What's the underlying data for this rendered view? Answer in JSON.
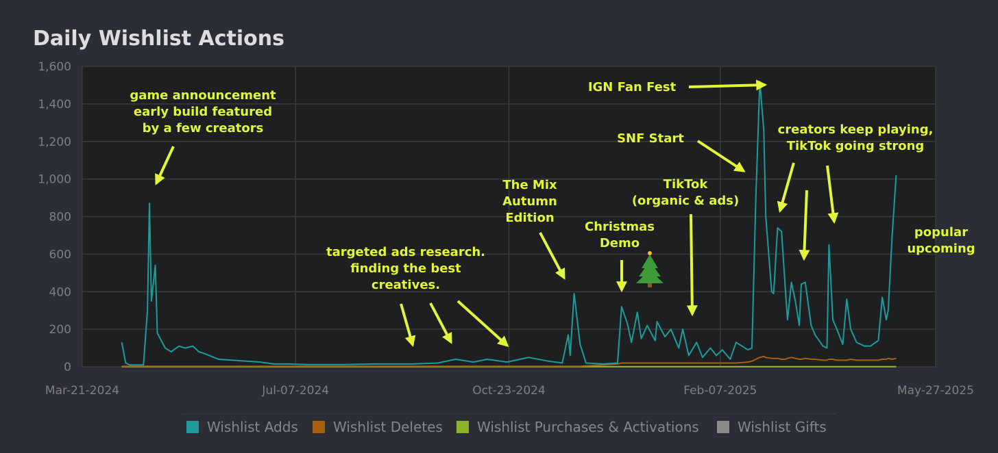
{
  "chart_data": {
    "type": "line",
    "title": "Daily Wishlist Actions",
    "x": [
      "2024-04-10",
      "2024-04-12",
      "2024-04-14",
      "2024-04-21",
      "2024-04-23",
      "2024-04-24",
      "2024-04-25",
      "2024-04-27",
      "2024-04-28",
      "2024-05-02",
      "2024-05-05",
      "2024-05-09",
      "2024-05-12",
      "2024-05-16",
      "2024-05-19",
      "2024-05-22",
      "2024-05-29",
      "2024-06-05",
      "2024-06-12",
      "2024-06-19",
      "2024-06-26",
      "2024-07-03",
      "2024-07-13",
      "2024-07-31",
      "2024-08-17",
      "2024-09-04",
      "2024-09-17",
      "2024-09-26",
      "2024-10-05",
      "2024-10-12",
      "2024-10-22",
      "2024-11-02",
      "2024-11-12",
      "2024-11-19",
      "2024-11-22",
      "2024-11-23",
      "2024-11-25",
      "2024-11-28",
      "2024-12-01",
      "2024-12-10",
      "2024-12-17",
      "2024-12-19",
      "2024-12-22",
      "2024-12-24",
      "2024-12-27",
      "2024-12-29",
      "2025-01-01",
      "2025-01-05",
      "2025-01-06",
      "2025-01-10",
      "2025-01-13",
      "2025-01-17",
      "2025-01-19",
      "2025-01-22",
      "2025-01-26",
      "2025-01-29",
      "2025-02-02",
      "2025-02-05",
      "2025-02-08",
      "2025-02-12",
      "2025-02-15",
      "2025-02-21",
      "2025-02-23",
      "2025-02-25",
      "2025-02-27",
      "2025-03-01",
      "2025-03-02",
      "2025-03-05",
      "2025-03-06",
      "2025-03-08",
      "2025-03-10",
      "2025-03-12",
      "2025-03-13",
      "2025-03-15",
      "2025-03-17",
      "2025-03-19",
      "2025-03-20",
      "2025-03-22",
      "2025-03-25",
      "2025-03-27",
      "2025-03-31",
      "2025-04-02",
      "2025-04-03",
      "2025-04-05",
      "2025-04-07",
      "2025-04-10",
      "2025-04-12",
      "2025-04-14",
      "2025-04-17",
      "2025-04-21",
      "2025-04-24",
      "2025-04-28",
      "2025-04-30",
      "2025-05-02",
      "2025-05-03",
      "2025-05-05",
      "2025-05-07"
    ],
    "series": [
      {
        "name": "Wishlist Adds",
        "color": "#1f9b9b",
        "values": [
          130,
          20,
          10,
          10,
          300,
          870,
          350,
          540,
          180,
          100,
          80,
          110,
          100,
          110,
          80,
          70,
          40,
          35,
          30,
          25,
          15,
          15,
          12,
          12,
          15,
          15,
          20,
          40,
          25,
          40,
          25,
          50,
          30,
          20,
          170,
          60,
          390,
          120,
          20,
          15,
          20,
          320,
          230,
          130,
          290,
          150,
          220,
          140,
          240,
          160,
          200,
          100,
          200,
          60,
          130,
          50,
          100,
          60,
          90,
          40,
          130,
          90,
          100,
          900,
          1520,
          1260,
          800,
          400,
          390,
          740,
          720,
          400,
          250,
          450,
          350,
          220,
          440,
          450,
          220,
          170,
          110,
          100,
          650,
          250,
          200,
          120,
          360,
          200,
          130,
          110,
          110,
          140,
          370,
          250,
          300,
          700,
          1020
        ]
      },
      {
        "name": "Wishlist Deletes",
        "color": "#a5610f",
        "values": [
          3,
          3,
          3,
          3,
          3,
          3,
          3,
          3,
          3,
          3,
          3,
          3,
          3,
          3,
          3,
          3,
          3,
          3,
          3,
          3,
          3,
          3,
          3,
          3,
          3,
          3,
          3,
          3,
          3,
          3,
          3,
          3,
          3,
          3,
          3,
          3,
          3,
          3,
          5,
          10,
          15,
          20,
          20,
          20,
          20,
          20,
          20,
          20,
          20,
          20,
          20,
          20,
          20,
          20,
          20,
          20,
          20,
          20,
          20,
          20,
          20,
          25,
          30,
          40,
          50,
          55,
          50,
          45,
          45,
          45,
          40,
          40,
          45,
          50,
          45,
          40,
          40,
          45,
          40,
          40,
          35,
          35,
          40,
          40,
          35,
          35,
          35,
          40,
          35,
          35,
          35,
          35,
          40,
          40,
          45,
          40,
          45
        ]
      },
      {
        "name": "Wishlist Purchases & Activations",
        "color": "#8db22a",
        "values": [
          1,
          1,
          1,
          1,
          1,
          1,
          1,
          1,
          1,
          1,
          1,
          1,
          1,
          1,
          1,
          1,
          1,
          1,
          1,
          1,
          1,
          1,
          1,
          1,
          1,
          1,
          1,
          1,
          1,
          1,
          1,
          1,
          1,
          1,
          1,
          1,
          1,
          1,
          1,
          1,
          1,
          1,
          1,
          1,
          1,
          1,
          1,
          1,
          1,
          1,
          1,
          1,
          1,
          1,
          1,
          1,
          1,
          1,
          1,
          1,
          1,
          1,
          1,
          1,
          1,
          1,
          1,
          1,
          1,
          1,
          1,
          1,
          1,
          1,
          1,
          1,
          1,
          1,
          1,
          1,
          1,
          1,
          1,
          1,
          1,
          1,
          1,
          1,
          1,
          1,
          1,
          1,
          1,
          1,
          1,
          1,
          1
        ]
      },
      {
        "name": "Wishlist Gifts",
        "color": "#8a8a8a",
        "values": [
          0,
          0,
          0,
          0,
          0,
          0,
          0,
          0,
          0,
          0,
          0,
          0,
          0,
          0,
          0,
          0,
          0,
          0,
          0,
          0,
          0,
          0,
          0,
          0,
          0,
          0,
          0,
          0,
          0,
          0,
          0,
          0,
          0,
          0,
          0,
          0,
          0,
          0,
          0,
          0,
          0,
          0,
          0,
          0,
          0,
          0,
          0,
          0,
          0,
          0,
          0,
          0,
          0,
          0,
          0,
          0,
          0,
          0,
          0,
          0,
          0,
          0,
          0,
          0,
          0,
          0,
          0,
          0,
          0,
          0,
          0,
          0,
          0,
          0,
          0,
          0,
          0,
          0,
          0,
          0,
          0,
          0,
          0,
          0,
          0,
          0,
          0,
          0,
          0,
          0,
          0,
          0,
          0,
          0,
          0,
          0,
          0
        ]
      }
    ],
    "xlim": [
      "2024-03-21",
      "2025-05-27"
    ],
    "xticks": [
      {
        "value": "2024-03-21",
        "label": "Mar-21-2024"
      },
      {
        "value": "2024-07-07",
        "label": "Jul-07-2024"
      },
      {
        "value": "2024-10-23",
        "label": "Oct-23-2024"
      },
      {
        "value": "2025-02-07",
        "label": "Feb-07-2025"
      },
      {
        "value": "2025-05-27",
        "label": "May-27-2025"
      }
    ],
    "ylim": [
      0,
      1600
    ],
    "yticks": [
      0,
      200,
      400,
      600,
      800,
      {
        "value": 1000,
        "label": "1,000"
      },
      {
        "value": 1200,
        "label": "1,200"
      },
      {
        "value": 1400,
        "label": "1,400"
      },
      {
        "value": 1600,
        "label": "1,600"
      }
    ],
    "grid": true,
    "legend": "bottom",
    "annotations": [
      [
        "game announcement",
        "early build featured",
        "by a few creators"
      ],
      [
        "targeted ads research.",
        "finding the best",
        "creatives."
      ],
      [
        "The Mix",
        "Autumn",
        "Edition"
      ],
      [
        "Christmas",
        "Demo"
      ],
      [
        "IGN Fan Fest"
      ],
      [
        "SNF Start"
      ],
      [
        "TikTok",
        "(organic & ads)"
      ],
      [
        "creators keep playing,",
        "TikTok going strong"
      ],
      [
        "popular",
        "upcoming"
      ]
    ]
  }
}
